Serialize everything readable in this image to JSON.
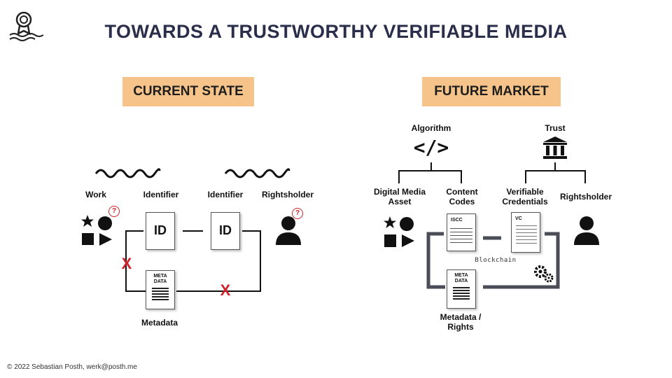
{
  "title": "TOWARDS A TRUSTWORTHY VERIFIABLE MEDIA",
  "footer": "© 2022 Sebastian Posth, werk@posth.me",
  "current": {
    "heading": "CURRENT STATE",
    "work": "Work",
    "identifier1": "Identifier",
    "identifier2": "Identifier",
    "rightsholder": "Rightsholder",
    "id1": "ID",
    "id2": "ID",
    "meta_line1": "META",
    "meta_line2": "DATA",
    "metadata": "Metadata",
    "question": "?",
    "cross": "X"
  },
  "future": {
    "heading": "FUTURE MARKET",
    "algorithm": "Algorithm",
    "algorithm_glyph": "</>",
    "trust": "Trust",
    "digital_media_asset_1": "Digital Media",
    "digital_media_asset_2": "Asset",
    "content_codes_1": "Content",
    "content_codes_2": "Codes",
    "verifiable_credentials_1": "Verifiable",
    "verifiable_credentials_2": "Credentials",
    "rightsholder": "Rightsholder",
    "iscc": "ISCC",
    "vc": "VC",
    "meta_line1": "META",
    "meta_line2": "DATA",
    "metadata_rights_1": "Metadata /",
    "metadata_rights_2": "Rights",
    "blockchain": "Blockchain"
  },
  "colors": {
    "title": "#2b2e4a",
    "badge": "#f6c48a",
    "cross": "#d0222a",
    "chain": "#4a4d57",
    "question": "#d0222a"
  }
}
